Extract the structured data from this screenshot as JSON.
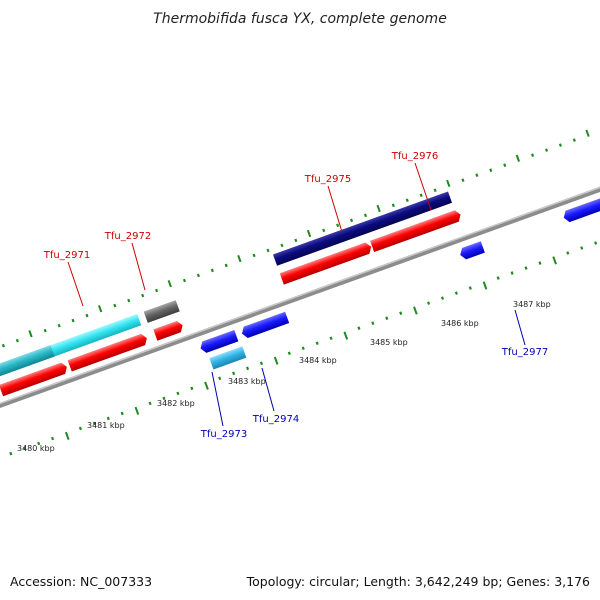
{
  "title": "Thermobifida fusca YX, complete genome",
  "footer": {
    "accession": "Accession: NC_007333",
    "summary": "Topology: circular; Length: 3,642,249 bp; Genes: 3,176"
  },
  "colors": {
    "forward_label": "#cc0000",
    "reverse_label": "#0000b3",
    "backbone": "#8c8c8c",
    "tick": "#1f8a1f",
    "cds_red": "#ff0000",
    "blue": "#1a1aff",
    "navy": "#0a0a80",
    "cyan": "#33e6f0",
    "teal": "#26b8c8",
    "light_blue": "#33b5e5",
    "gray": "#666666"
  },
  "scale_labels": [
    "3480 kbp",
    "3481 kbp",
    "3482 kbp",
    "3483 kbp",
    "3484 kbp",
    "3485 kbp",
    "3486 kbp",
    "3487 kbp"
  ],
  "gene_labels": [
    {
      "name": "Tfu_2971",
      "strand": "forward"
    },
    {
      "name": "Tfu_2972",
      "strand": "forward"
    },
    {
      "name": "Tfu_2975",
      "strand": "forward"
    },
    {
      "name": "Tfu_2976",
      "strand": "forward"
    },
    {
      "name": "Tfu_2973",
      "strand": "reverse"
    },
    {
      "name": "Tfu_2974",
      "strand": "reverse"
    },
    {
      "name": "Tfu_2977",
      "strand": "reverse"
    }
  ]
}
